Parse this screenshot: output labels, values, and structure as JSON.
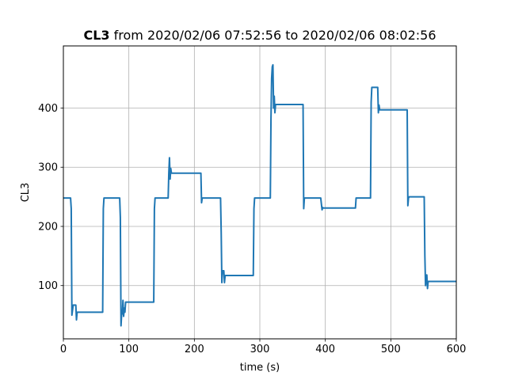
{
  "chart_data": {
    "type": "line",
    "title_bold": "CL3",
    "title_rest": " from 2020/02/06 07:52:56 to 2020/02/06 08:02:56",
    "xlabel": "time (s)",
    "ylabel": "CL3",
    "xlim": [
      0,
      600
    ],
    "ylim": [
      10,
      505
    ],
    "xticks": [
      0,
      100,
      200,
      300,
      400,
      500,
      600
    ],
    "yticks": [
      100,
      200,
      300,
      400
    ],
    "grid": true,
    "line_color": "#1f77b4",
    "series": [
      {
        "x": [
          0,
          11,
          12,
          13,
          15,
          16,
          18,
          19,
          20,
          21,
          22,
          60,
          61,
          62,
          63,
          64,
          86,
          87,
          88,
          89,
          90,
          91,
          92,
          93,
          94,
          95,
          96,
          97,
          98,
          99,
          100,
          138,
          139,
          140,
          141,
          142,
          160,
          161,
          162,
          163,
          164,
          165,
          166,
          167,
          168,
          169,
          170,
          210,
          211,
          212,
          213,
          214,
          240,
          241,
          242,
          243,
          244,
          245,
          246,
          247,
          248,
          249,
          250,
          290,
          291,
          292,
          293,
          294,
          316,
          317,
          318,
          319,
          320,
          321,
          322,
          323,
          324,
          325,
          326,
          327,
          328,
          329,
          330,
          366,
          367,
          368,
          369,
          370,
          393,
          394,
          395,
          396,
          397,
          398,
          399,
          400,
          446,
          447,
          448,
          449,
          450,
          469,
          470,
          471,
          472,
          473,
          480,
          481,
          482,
          483,
          484,
          485,
          525,
          526,
          527,
          528,
          529,
          550,
          551,
          552,
          553,
          554,
          555,
          556,
          557,
          558,
          559,
          560,
          600
        ],
        "y": [
          248,
          248,
          230,
          50,
          67,
          67,
          67,
          67,
          42,
          55,
          55,
          55,
          230,
          248,
          248,
          248,
          248,
          215,
          32,
          52,
          52,
          75,
          48,
          62,
          55,
          72,
          72,
          72,
          72,
          72,
          72,
          72,
          230,
          248,
          248,
          248,
          248,
          290,
          316,
          280,
          298,
          290,
          290,
          290,
          290,
          290,
          290,
          290,
          240,
          248,
          248,
          248,
          248,
          190,
          105,
          125,
          125,
          125,
          105,
          117,
          117,
          117,
          117,
          117,
          230,
          248,
          248,
          248,
          248,
          380,
          450,
          470,
          473,
          400,
          420,
          392,
          406,
          406,
          406,
          406,
          406,
          406,
          406,
          406,
          230,
          248,
          248,
          248,
          248,
          238,
          228,
          232,
          231,
          231,
          231,
          231,
          231,
          248,
          248,
          248,
          248,
          248,
          410,
          435,
          435,
          435,
          435,
          392,
          405,
          397,
          397,
          397,
          397,
          235,
          248,
          250,
          250,
          250,
          250,
          150,
          100,
          115,
          118,
          95,
          107,
          107,
          107,
          107,
          107
        ]
      }
    ]
  }
}
